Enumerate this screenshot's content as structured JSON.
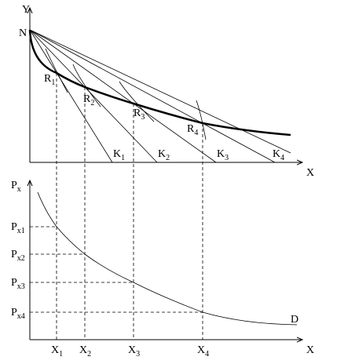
{
  "top_axes": {
    "y_label": "Y",
    "x_label": "X",
    "origin_point": "N"
  },
  "tangency_points": [
    {
      "base": "R",
      "sub": "1"
    },
    {
      "base": "R",
      "sub": "2"
    },
    {
      "base": "R",
      "sub": "3"
    },
    {
      "base": "R",
      "sub": "4"
    }
  ],
  "budget_intercepts": [
    {
      "base": "K",
      "sub": "1"
    },
    {
      "base": "K",
      "sub": "2"
    },
    {
      "base": "K",
      "sub": "3"
    },
    {
      "base": "K",
      "sub": "4"
    }
  ],
  "bottom_axes": {
    "y_label": {
      "base": "P",
      "sub": "x"
    },
    "x_label": "X"
  },
  "prices": [
    {
      "base": "P",
      "sub": "x1"
    },
    {
      "base": "P",
      "sub": "x2"
    },
    {
      "base": "P",
      "sub": "x3"
    },
    {
      "base": "P",
      "sub": "x4"
    }
  ],
  "quantities": [
    {
      "base": "X",
      "sub": "1"
    },
    {
      "base": "X",
      "sub": "2"
    },
    {
      "base": "X",
      "sub": "3"
    },
    {
      "base": "X",
      "sub": "4"
    }
  ],
  "demand_label": "D"
}
